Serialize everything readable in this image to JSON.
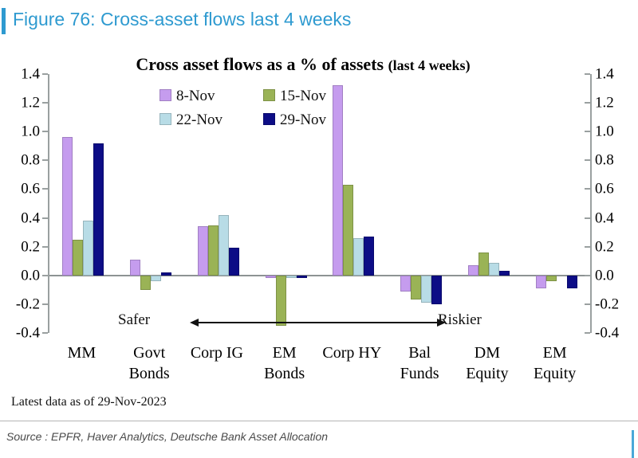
{
  "header": {
    "title": "Figure 76: Cross-asset flows last 4 weeks",
    "accent_color": "#2e9ad0"
  },
  "chart_data": {
    "type": "bar",
    "title": "Cross asset flows as a % of assets",
    "title_suffix": "(last 4 weeks)",
    "categories": [
      "MM",
      "Govt Bonds",
      "Corp IG",
      "EM Bonds",
      "Corp HY",
      "Bal Funds",
      "DM Equity",
      "EM Equity"
    ],
    "category_lines": [
      [
        "MM"
      ],
      [
        "Govt",
        "Bonds"
      ],
      [
        "Corp IG"
      ],
      [
        "EM",
        "Bonds"
      ],
      [
        "Corp HY"
      ],
      [
        "Bal",
        "Funds"
      ],
      [
        "DM",
        "Equity"
      ],
      [
        "EM",
        "Equity"
      ]
    ],
    "series": [
      {
        "name": "8-Nov",
        "color": "#c59cee",
        "values": [
          0.96,
          0.11,
          0.34,
          -0.02,
          1.32,
          -0.11,
          0.07,
          -0.09
        ]
      },
      {
        "name": "15-Nov",
        "color": "#9ab356",
        "values": [
          0.25,
          -0.1,
          0.35,
          -0.35,
          0.63,
          -0.17,
          0.16,
          -0.04
        ]
      },
      {
        "name": "22-Nov",
        "color": "#b8dce6",
        "values": [
          0.38,
          -0.04,
          0.42,
          -0.02,
          0.26,
          -0.19,
          0.09,
          0.0
        ]
      },
      {
        "name": "29-Nov",
        "color": "#0d0d86",
        "values": [
          0.92,
          0.02,
          0.19,
          -0.02,
          0.27,
          -0.2,
          0.03,
          -0.09
        ]
      }
    ],
    "ylim": [
      -0.4,
      1.4
    ],
    "ytick_step": 0.2,
    "yticks": [
      "1.4",
      "1.2",
      "1.0",
      "0.8",
      "0.6",
      "0.4",
      "0.2",
      "0.0",
      "-0.2",
      "-0.4"
    ],
    "grid": false,
    "legend_position": "top-left two rows",
    "annotations": {
      "left": "Safer",
      "right": "Riskier"
    },
    "note": "Latest data as of 29-Nov-2023"
  },
  "footer": {
    "source": "Source : EPFR, Haver Analytics, Deutsche Bank Asset Allocation"
  }
}
